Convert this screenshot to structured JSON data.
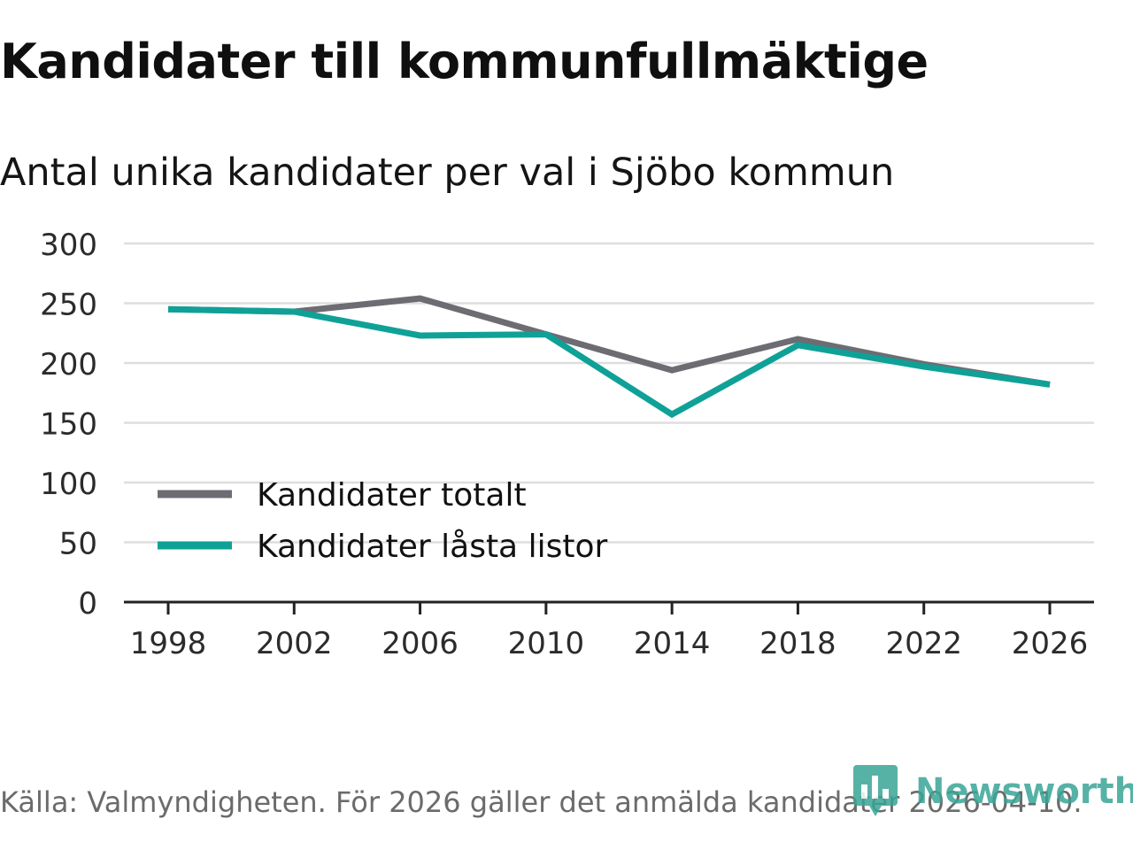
{
  "chart_data": {
    "type": "line",
    "title": "Kandidater till kommunfullmäktige",
    "subtitle": "Antal unika kandidater per val i Sjöbo kommun",
    "xlabel": "",
    "ylabel": "",
    "x": [
      1998,
      2002,
      2006,
      2010,
      2014,
      2018,
      2022,
      2026
    ],
    "x_tick_labels": [
      "1998",
      "2002",
      "2006",
      "2010",
      "2014",
      "2018",
      "2022",
      "2026"
    ],
    "y_ticks": [
      0,
      50,
      100,
      150,
      200,
      250,
      300
    ],
    "y_tick_labels": [
      "0",
      "50",
      "100",
      "150",
      "200",
      "250",
      "300"
    ],
    "ylim": [
      0,
      300
    ],
    "grid": true,
    "legend_position": "bottom-left",
    "series": [
      {
        "name": "Kandidater totalt",
        "color": "#6d6c73",
        "values": [
          245,
          243,
          254,
          224,
          194,
          220,
          199,
          182
        ]
      },
      {
        "name": "Kandidater låsta listor",
        "color": "#0fa197",
        "values": [
          245,
          243,
          223,
          224,
          157,
          215,
          197,
          182
        ]
      }
    ]
  },
  "source": "Källa: Valmyndigheten. För 2026 gäller det anmälda kandidater 2026-04-10.",
  "brand": {
    "name": "Newsworthy",
    "color": "#3aa597",
    "icon": "bar-chart-logo-icon"
  }
}
